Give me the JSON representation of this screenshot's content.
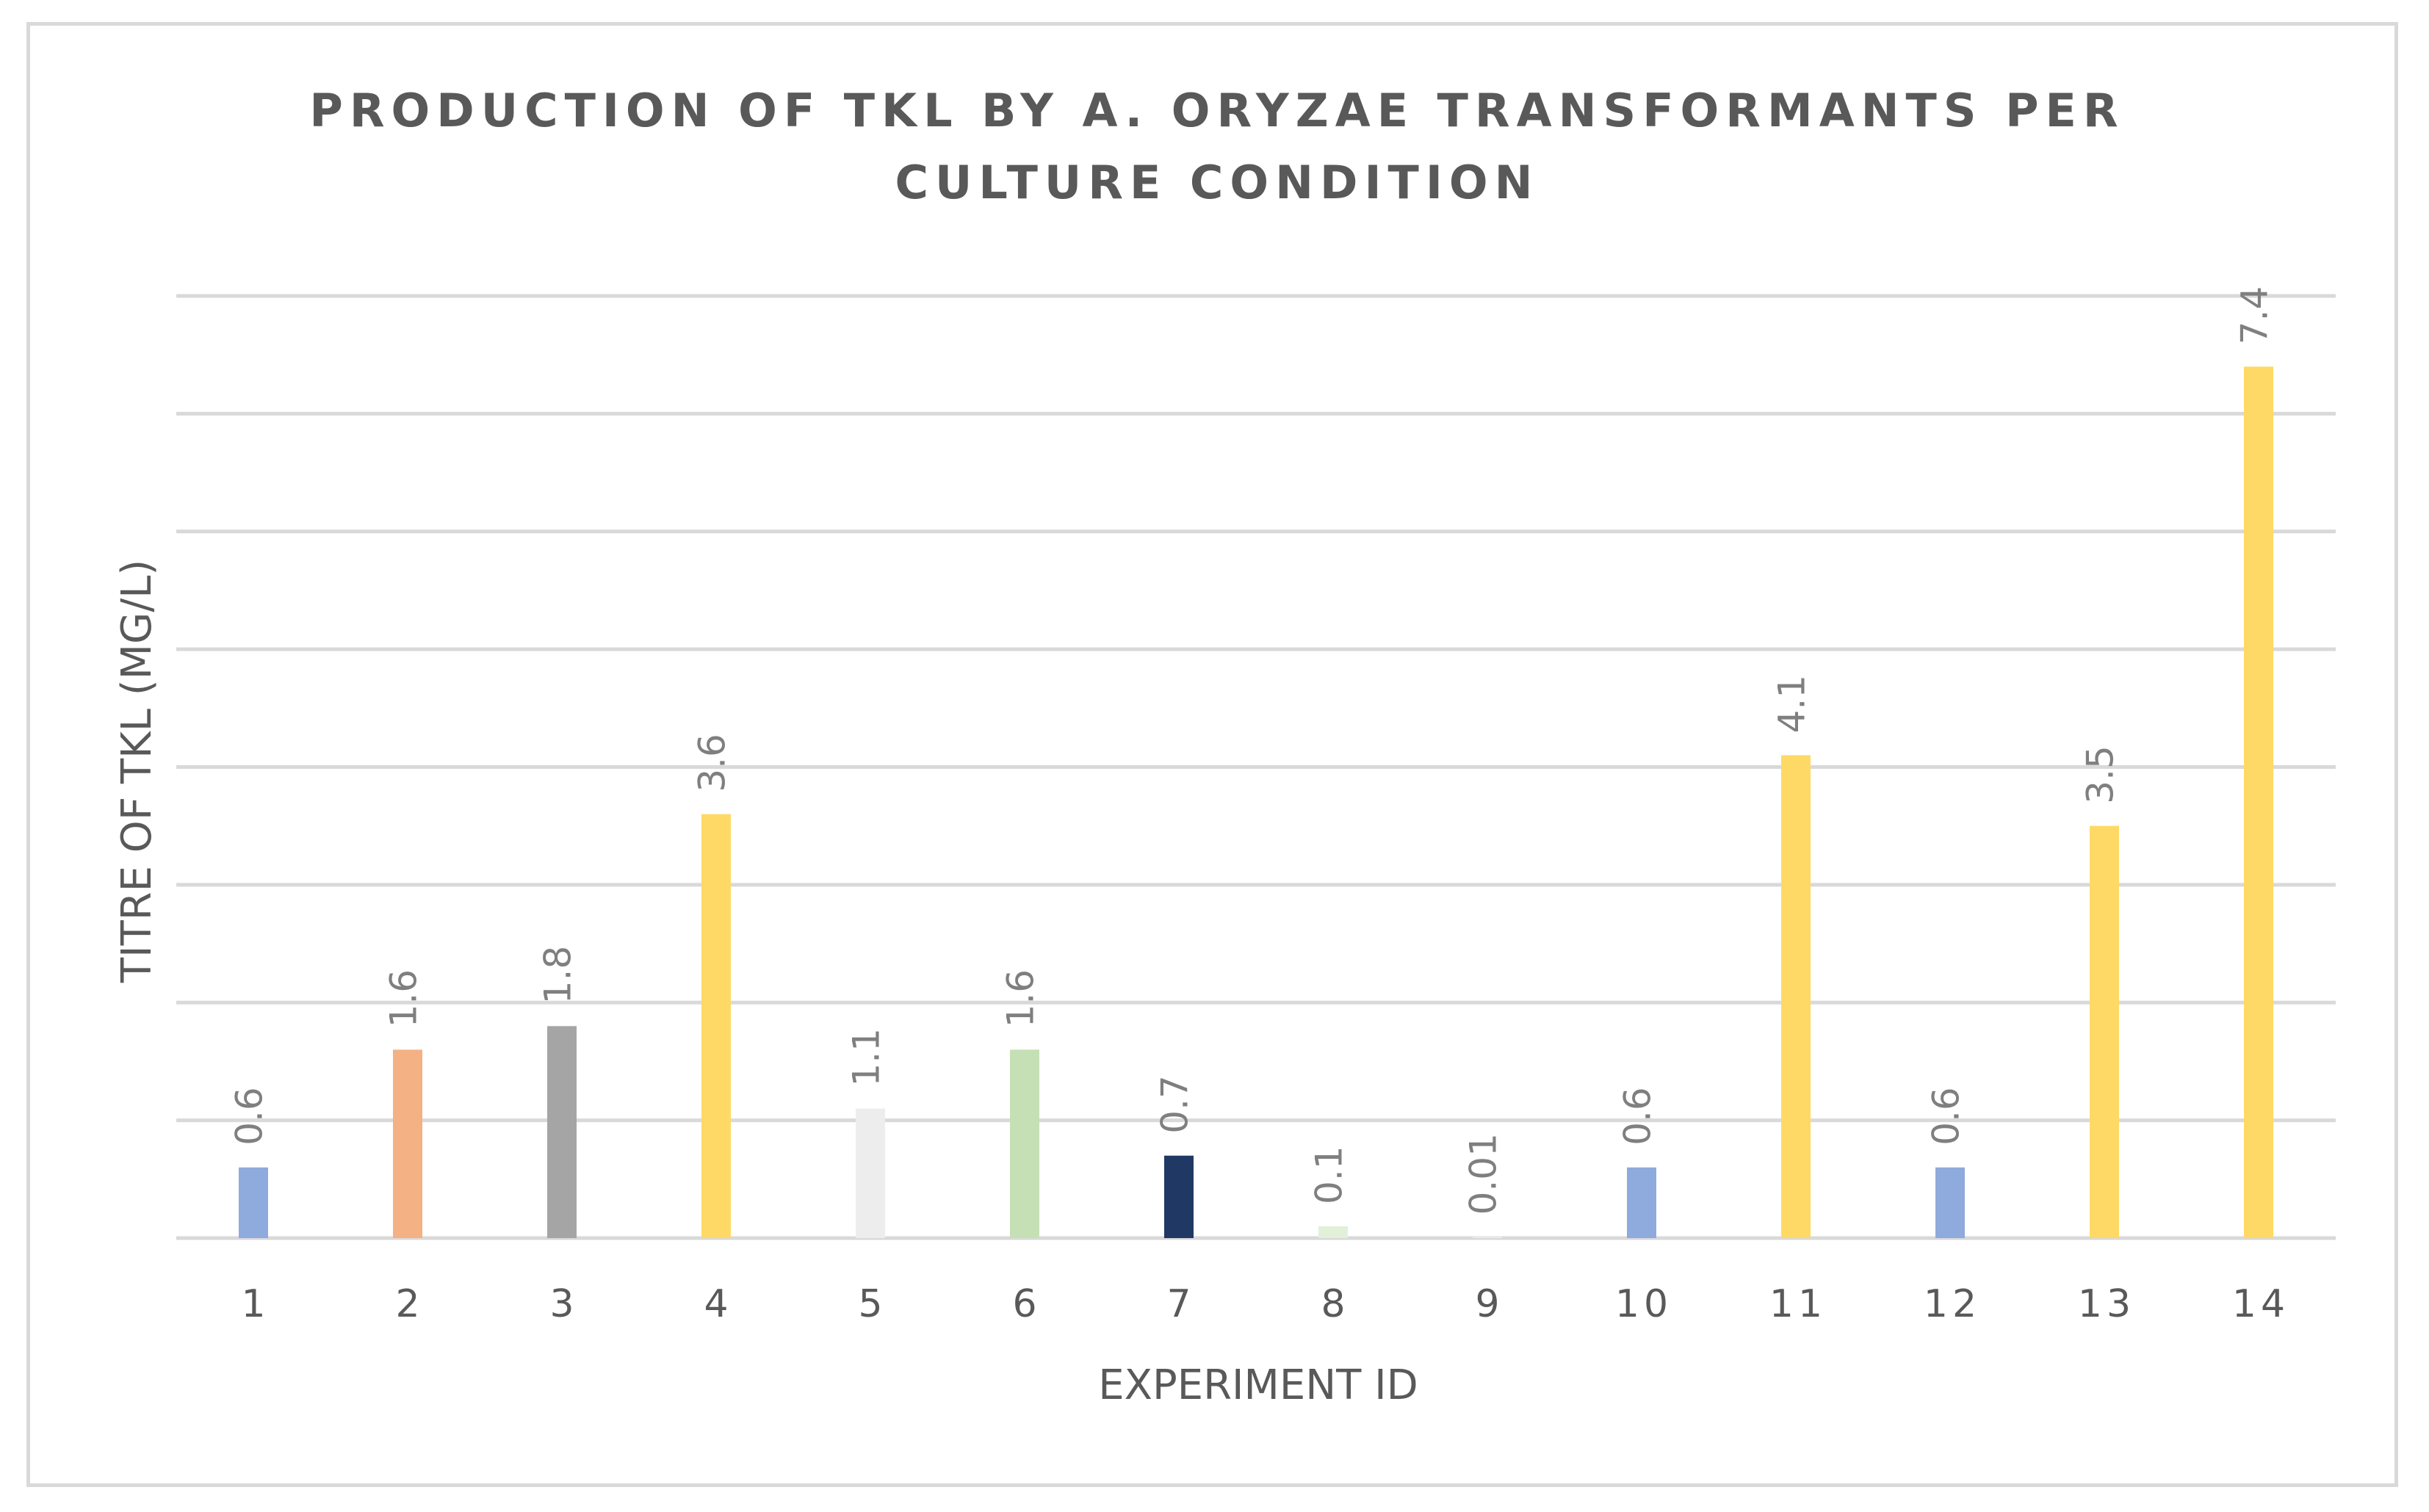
{
  "chart_data": {
    "type": "bar",
    "title": "PRODUCTION OF TKL BY A. ORYZAE TRANSFORMANTS PER CULTURE CONDITION",
    "title_lines": [
      "PRODUCTION OF TKL BY A. ORYZAE TRANSFORMANTS PER",
      "CULTURE CONDITION"
    ],
    "xlabel": "EXPERIMENT ID",
    "ylabel": "TITRE OF TKL (MG/L)",
    "categories": [
      "1",
      "2",
      "3",
      "4",
      "5",
      "6",
      "7",
      "8",
      "9",
      "10",
      "11",
      "12",
      "13",
      "14"
    ],
    "values": [
      0.6,
      1.6,
      1.8,
      3.6,
      1.1,
      1.6,
      0.7,
      0.1,
      0.01,
      0.6,
      4.1,
      0.6,
      3.5,
      7.4
    ],
    "data_labels": [
      "0.6",
      "1.6",
      "1.8",
      "3.6",
      "1.1",
      "1.6",
      "0.7",
      "0.1",
      "0.01",
      "0.6",
      "4.1",
      "0.6",
      "3.5",
      "7.4"
    ],
    "colors": [
      "#8faadc",
      "#f4b183",
      "#a5a5a5",
      "#ffd966",
      "#ededed",
      "#c5e0b4",
      "#203864",
      "#e2f0d9",
      "#ededed",
      "#8faadc",
      "#ffd966",
      "#8faadc",
      "#ffd966",
      "#ffd966"
    ],
    "ylim": [
      0,
      8
    ],
    "gridline_step": 1,
    "y_tick_labels_visible": false,
    "grid": true,
    "legend": "none"
  }
}
